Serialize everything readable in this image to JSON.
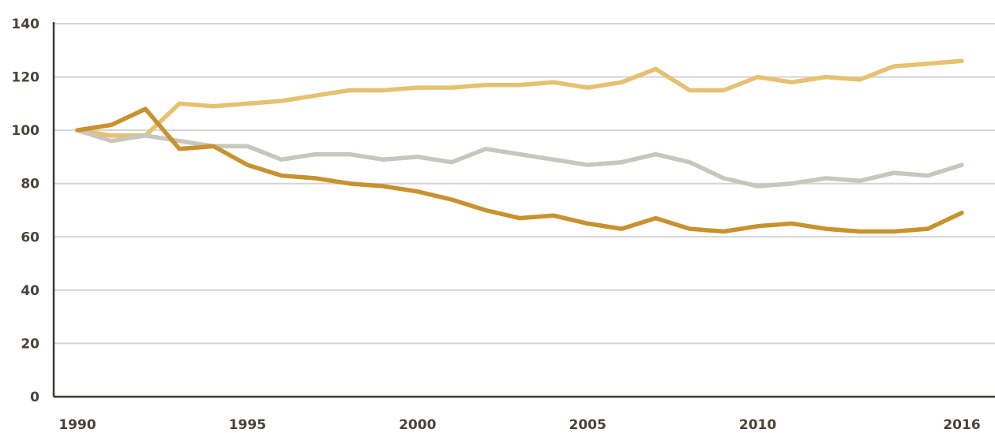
{
  "chart_data": {
    "type": "line",
    "title": "",
    "xlabel": "",
    "ylabel": "",
    "xlim": [
      1990,
      2016.6
    ],
    "ylim": [
      0,
      140
    ],
    "grid": true,
    "x_tick_labels": [
      "1990",
      "1995",
      "2000",
      "2005",
      "2010",
      "2016"
    ],
    "y_tick_labels": [
      "0",
      "20",
      "40",
      "60",
      "80",
      "100",
      "120",
      "140"
    ],
    "x": [
      1990,
      1991,
      1992,
      1993,
      1994,
      1995,
      1996,
      1997,
      1998,
      1999,
      2000,
      2001,
      2002,
      2003,
      2004,
      2005,
      2006,
      2007,
      2008,
      2009,
      2010,
      2011,
      2012,
      2013,
      2014,
      2015,
      2016
    ],
    "series": [
      {
        "color": "#e6c170",
        "values": [
          100,
          98,
          98,
          110,
          109,
          110,
          111,
          113,
          115,
          115,
          116,
          116,
          117,
          117,
          118,
          116,
          118,
          123,
          115,
          115,
          120,
          118,
          120,
          119,
          124,
          125,
          126
        ]
      },
      {
        "color": "#c7c7bd",
        "values": [
          100,
          96,
          98,
          96,
          94,
          94,
          89,
          91,
          91,
          89,
          90,
          88,
          93,
          91,
          89,
          87,
          88,
          91,
          88,
          82,
          79,
          80,
          82,
          81,
          84,
          83,
          87
        ]
      },
      {
        "color": "#c8922e",
        "values": [
          100,
          102,
          108,
          93,
          94,
          87,
          83,
          82,
          80,
          79,
          77,
          74,
          70,
          67,
          68,
          65,
          63,
          67,
          63,
          62,
          64,
          65,
          63,
          62,
          62,
          63,
          69
        ]
      }
    ]
  }
}
